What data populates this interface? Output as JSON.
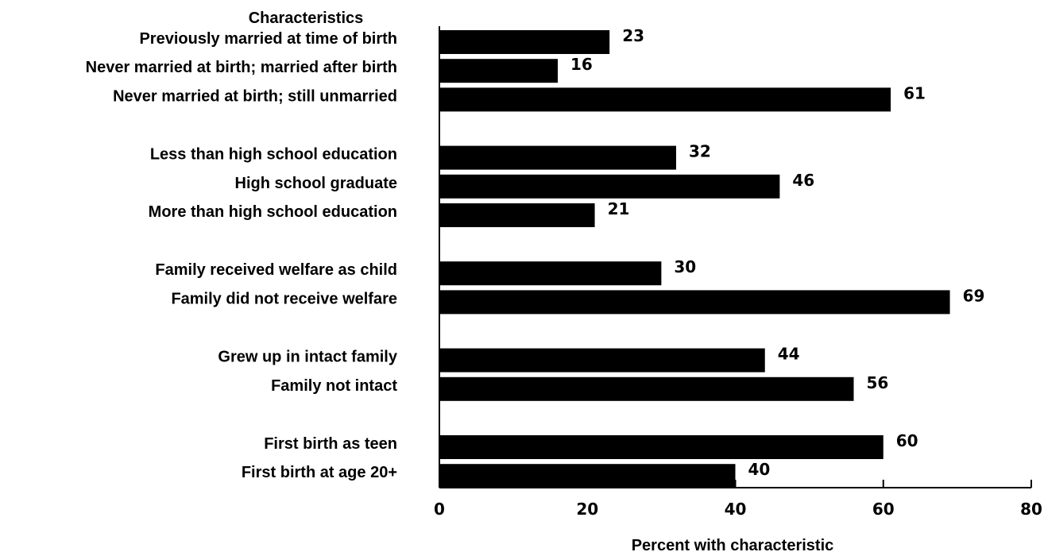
{
  "chart_data": {
    "type": "bar",
    "orientation": "horizontal",
    "category_header": "Characteristics",
    "categories": [
      "Previously married at time of birth",
      "Never married at birth; married after birth",
      "Never married at birth; still unmarried",
      "Less than high school education",
      "High school graduate",
      "More than high school education",
      "Family received welfare as child",
      "Family did not receive welfare",
      "Grew up in intact family",
      "Family not  intact",
      "First birth as teen",
      "First birth at age 20+"
    ],
    "groups": [
      3,
      3,
      2,
      2,
      2
    ],
    "values": [
      23,
      16,
      61,
      32,
      46,
      21,
      30,
      69,
      44,
      56,
      60,
      40
    ],
    "xlabel": "Percent with characteristic",
    "ylabel": "",
    "xlim": [
      0,
      80
    ],
    "xticks": [
      0,
      20,
      40,
      60,
      80
    ],
    "bar_color": "#000000",
    "grid": false
  }
}
